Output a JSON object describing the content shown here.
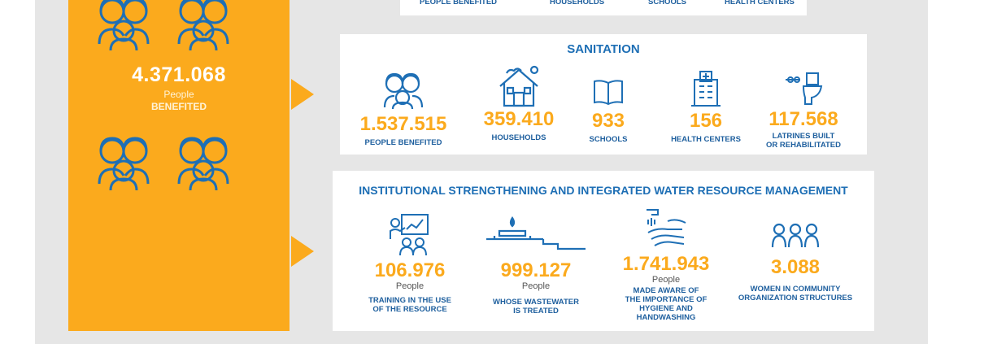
{
  "left_total": {
    "value": "4.371.068",
    "unit": "People",
    "label": "BENEFITED"
  },
  "water_partial_labels": [
    "PEOPLE BENEFITED",
    "HOUSEHOLDS",
    "SCHOOLS",
    "HEALTH CENTERS"
  ],
  "sanitation": {
    "title": "SANITATION",
    "stats": [
      {
        "icon": "people-icon",
        "value": "1.537.515",
        "label": "PEOPLE BENEFITED"
      },
      {
        "icon": "house-icon",
        "value": "359.410",
        "label": "HOUSEHOLDS"
      },
      {
        "icon": "book-icon",
        "value": "933",
        "label": "SCHOOLS"
      },
      {
        "icon": "hospital-icon",
        "value": "156",
        "label": "HEALTH CENTERS"
      },
      {
        "icon": "toilet-icon",
        "value": "117.568",
        "label_line1": "LATRINES BUILT",
        "label_line2": "OR REHABILITATED"
      }
    ]
  },
  "institutional": {
    "title": "INSTITUTIONAL STRENGTHENING AND INTEGRATED WATER RESOURCE MANAGEMENT",
    "stats": [
      {
        "icon": "training-icon",
        "value": "106.976",
        "unit": "People",
        "label_line1": "TRAINING IN THE USE",
        "label_line2": "OF THE RESOURCE"
      },
      {
        "icon": "wastewater-icon",
        "value": "999.127",
        "unit": "People",
        "label_line1": "WHOSE WASTEWATER",
        "label_line2": "IS TREATED"
      },
      {
        "icon": "handwashing-icon",
        "value": "1.741.943",
        "unit": "People",
        "label_line1": "MADE AWARE OF",
        "label_line2": "THE IMPORTANCE OF",
        "label_line3": "HYGIENE AND",
        "label_line4": "HANDWASHING"
      },
      {
        "icon": "community-icon",
        "value": "3.088",
        "label_line1": "WOMEN IN COMMUNITY",
        "label_line2": "ORGANIZATION STRUCTURES"
      }
    ]
  },
  "colors": {
    "accent": "#fbaa1d",
    "title_blue": "#1e6fb5",
    "label_blue": "#1e5f9e",
    "panel_gray": "#e6e6e6"
  }
}
